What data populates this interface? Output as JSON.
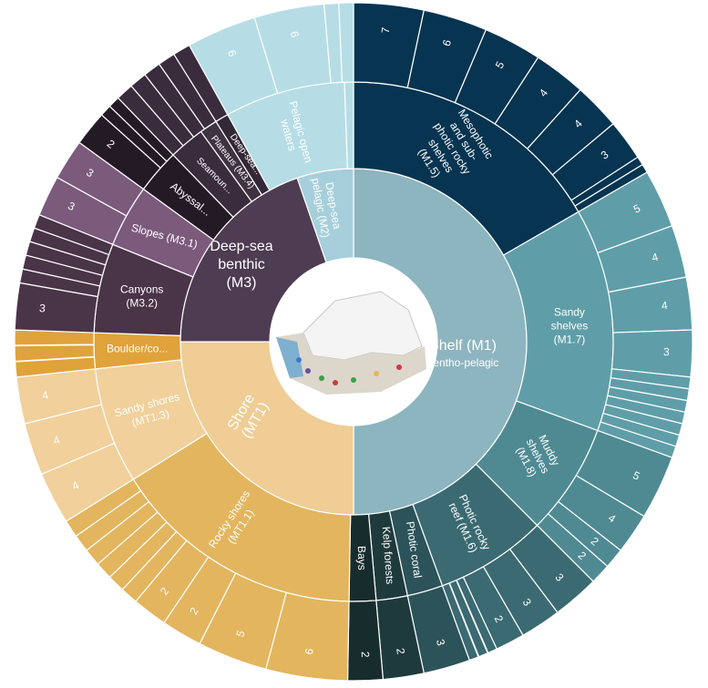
{
  "chart_data": {
    "type": "sunburst",
    "center_image": "south-africa-marine-map-thumbnail",
    "colors": {
      "shelf_inner": "#8db5bf",
      "shelf_mesophotic": "#063451",
      "shelf_sandy": "#5f9ea8",
      "shelf_muddy": "#4f8a93",
      "shelf_photic": "#3b6a72",
      "shelf_coral": "#2c5359",
      "shelf_kelp": "#1f3a3c",
      "shelf_bays": "#172c2d",
      "shore_inner": "#efcd94",
      "shore_rocky": "#e3b55e",
      "shore_sandy": "#f1d09b",
      "shore_boulder": "#e0a23b",
      "deep_benthic_inner": "#4e3c52",
      "deep_canyons": "#4a3448",
      "deep_slopes": "#7c5a7c",
      "deep_abyssal": "#241a26",
      "deep_seamount": "#3a2c3d",
      "deep_plateau": "#3f3242",
      "deep_deepsea": "#332835",
      "pelagic_inner": "#a6cfdb",
      "pelagic_outer": "#b6dde6"
    },
    "inner_ring": [
      {
        "key": "shelf",
        "label": "Shelf (M1)",
        "sublabel": "bentho-pelagic",
        "a0": 90,
        "a1": 360
      },
      {
        "key": "shore",
        "label": "Shore (MT1)",
        "a0": 0,
        "a1": 90
      },
      {
        "key": "deepbenthic",
        "label": "Deep-sea benthic (M3)",
        "a0": 90,
        "a1": 180
      },
      {
        "key": "deeppelagic",
        "label": "Deep-sea pelagic (M2)",
        "a0": 180,
        "a1": 225
      },
      {
        "key": "pelagicopen",
        "label": "Pelagic open waters",
        "a0": 225,
        "a1": 270
      }
    ],
    "middle_ring": [
      {
        "label": "Mesophotic and sub-photic rocky shelves (M1.5)",
        "a0": 0,
        "a1": 60
      },
      {
        "label": "Sandy shelves (M1.7)",
        "a0": 60,
        "a1": 110
      },
      {
        "label": "Muddy shelves (M1.8)",
        "a0": 110,
        "a1": 135
      },
      {
        "label": "Photic rocky reef (M1.6)",
        "a0": 135,
        "a1": 165
      },
      {
        "label": "Photic coral",
        "a0": 165,
        "a1": 172
      },
      {
        "label": "Kelp forests",
        "a0": 172,
        "a1": 178
      },
      {
        "label": "Bays",
        "a0": 178,
        "a1": 183
      },
      {
        "label": "Rocky shores (MT1.1)",
        "a0": 183,
        "a1": 238
      },
      {
        "label": "Sandy shores (MT1.3)",
        "a0": 238,
        "a1": 266
      },
      {
        "label": "Boulder/co...",
        "a0": 266,
        "a1": 273
      },
      {
        "label": "Canyons (M3.2)",
        "a0": 273,
        "a1": 292
      },
      {
        "label": "Slopes (M3.1)",
        "a0": 292,
        "a1": 306
      },
      {
        "label": "Abyssal...",
        "a0": 306,
        "a1": 316
      },
      {
        "label": "Seamoun...",
        "a0": 316,
        "a1": 325
      },
      {
        "label": "Plateaus (M3.4)",
        "a0": 325,
        "a1": 330
      },
      {
        "label": "Deep-sea...",
        "a0": 330,
        "a1": 334
      },
      {
        "label": "Pelagic open waters",
        "a0": 334,
        "a1": 358
      },
      {
        "label": "",
        "a0": 358,
        "a1": 360
      }
    ],
    "outer_ring_values": [
      {
        "parent": "Mesophotic",
        "value": "7"
      },
      {
        "parent": "Mesophotic",
        "value": "6"
      },
      {
        "parent": "Mesophotic",
        "value": "5"
      },
      {
        "parent": "Mesophotic",
        "value": "4"
      },
      {
        "parent": "Mesophotic",
        "value": "4"
      },
      {
        "parent": "Mesophotic",
        "value": "3"
      },
      {
        "parent": "Sandy shelves",
        "value": "5"
      },
      {
        "parent": "Sandy shelves",
        "value": "4"
      },
      {
        "parent": "Sandy shelves",
        "value": "4"
      },
      {
        "parent": "Sandy shelves",
        "value": "3"
      },
      {
        "parent": "Muddy shelves",
        "value": "5"
      },
      {
        "parent": "Muddy shelves",
        "value": "4"
      },
      {
        "parent": "Muddy shelves",
        "value": "2"
      },
      {
        "parent": "Muddy shelves",
        "value": "2"
      },
      {
        "parent": "Photic rocky reef",
        "value": "3"
      },
      {
        "parent": "Photic rocky reef",
        "value": "3"
      },
      {
        "parent": "Photic rocky reef",
        "value": "2"
      },
      {
        "parent": "Photic coral",
        "value": "3"
      },
      {
        "parent": "Kelp forests",
        "value": "2"
      },
      {
        "parent": "Bays",
        "value": "2"
      },
      {
        "parent": "Rocky shores",
        "value": "6"
      },
      {
        "parent": "Rocky shores",
        "value": "5"
      },
      {
        "parent": "Rocky shores",
        "value": "2"
      },
      {
        "parent": "Rocky shores",
        "value": "2"
      },
      {
        "parent": "Sandy shores",
        "value": "4"
      },
      {
        "parent": "Sandy shores",
        "value": "4"
      },
      {
        "parent": "Sandy shores",
        "value": "4"
      },
      {
        "parent": "Canyons",
        "value": "3"
      },
      {
        "parent": "Slopes",
        "value": "3"
      },
      {
        "parent": "Slopes",
        "value": "3"
      },
      {
        "parent": "Abyssal",
        "value": "2"
      },
      {
        "parent": "Pelagic open waters",
        "value": "6"
      },
      {
        "parent": "Pelagic open waters",
        "value": "6"
      }
    ]
  }
}
